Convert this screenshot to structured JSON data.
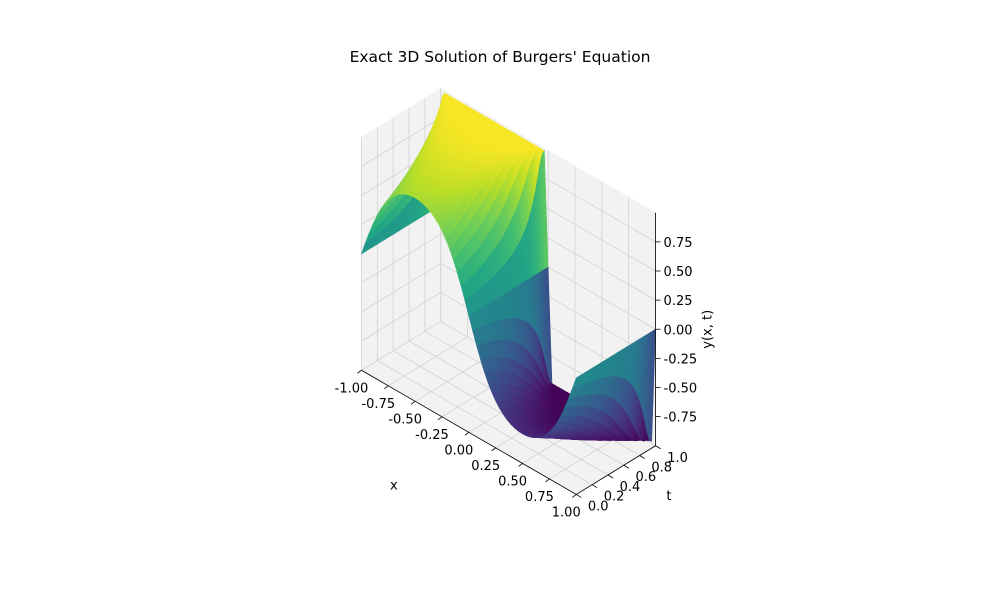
{
  "chart_data": {
    "type": "surface3d",
    "title": "Exact 3D Solution of Burgers' Equation",
    "xlabel": "x",
    "ylabel": "t",
    "zlabel": "y(x, t)",
    "xlim": [
      -1,
      1
    ],
    "ylim": [
      0,
      1
    ],
    "zlim": [
      -1,
      1
    ],
    "x_ticks": [
      "-1.00",
      "-0.75",
      "-0.50",
      "-0.25",
      "0.00",
      "0.25",
      "0.50",
      "0.75",
      "1.00"
    ],
    "y_ticks": [
      "0.0",
      "0.2",
      "0.4",
      "0.6",
      "0.8",
      "1.0"
    ],
    "z_ticks": [
      "-0.75",
      "-0.50",
      "-0.25",
      "0.00",
      "0.25",
      "0.50",
      "0.75"
    ],
    "x_tick_values": [
      -1,
      -0.75,
      -0.5,
      -0.25,
      0,
      0.25,
      0.5,
      0.75,
      1
    ],
    "y_tick_values": [
      0,
      0.2,
      0.4,
      0.6,
      0.8,
      1.0
    ],
    "z_tick_values": [
      -0.75,
      -0.5,
      -0.25,
      0,
      0.25,
      0.5,
      0.75
    ],
    "colormap": "viridis",
    "surface_function": "y(x,0) = -sin(pi*x); evolves into a stationary shock at x = 0 by t = 1",
    "grid": true
  }
}
